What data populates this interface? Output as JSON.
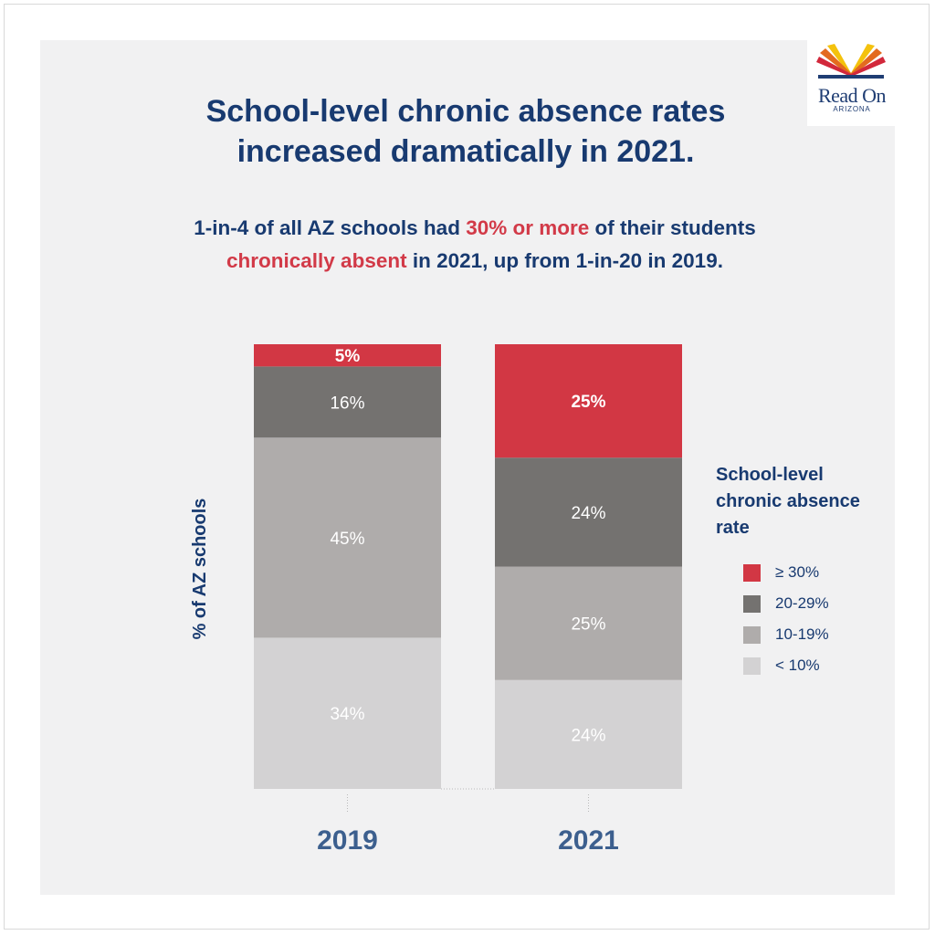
{
  "header": {
    "title_line1": "School-level chronic absence rates",
    "title_line2": "increased dramatically in 2021.",
    "subtitle": {
      "part1": "1-in-4 of all AZ schools had ",
      "highlight1": "30% or more",
      "part2": " of their students",
      "highlight2": "chronically absent",
      "part3": " in 2021, up from 1-in-20 in 2019."
    }
  },
  "logo": {
    "name": "Read On",
    "sub": "ARIZONA",
    "icon": "open-book-icon"
  },
  "colors": {
    "title": "#183a70",
    "highlight": "#d23a48",
    "ge30": "#d23744",
    "r20_29": "#747270",
    "r10_19": "#afacab",
    "lt10": "#d3d2d3"
  },
  "chart_data": {
    "type": "bar",
    "stacked": true,
    "categories": [
      "2019",
      "2021"
    ],
    "ylabel": "% of AZ schools",
    "ylim": [
      0,
      100
    ],
    "legend_title": "School-level chronic absence rate",
    "legend_position": "right",
    "series": [
      {
        "name": "< 10%",
        "values": [
          34,
          24
        ],
        "color": "#d3d2d3",
        "labels": [
          "34%",
          "24%"
        ]
      },
      {
        "name": "10-19%",
        "values": [
          45,
          25
        ],
        "color": "#afacab",
        "labels": [
          "45%",
          "25%"
        ]
      },
      {
        "name": "20-29%",
        "values": [
          16,
          24
        ],
        "color": "#747270",
        "labels": [
          "16%",
          "24%"
        ]
      },
      {
        "name": "≥ 30%",
        "values": [
          5,
          25
        ],
        "color": "#d23744",
        "labels": [
          "5%",
          "25%"
        ],
        "bold_labels": true
      }
    ]
  }
}
